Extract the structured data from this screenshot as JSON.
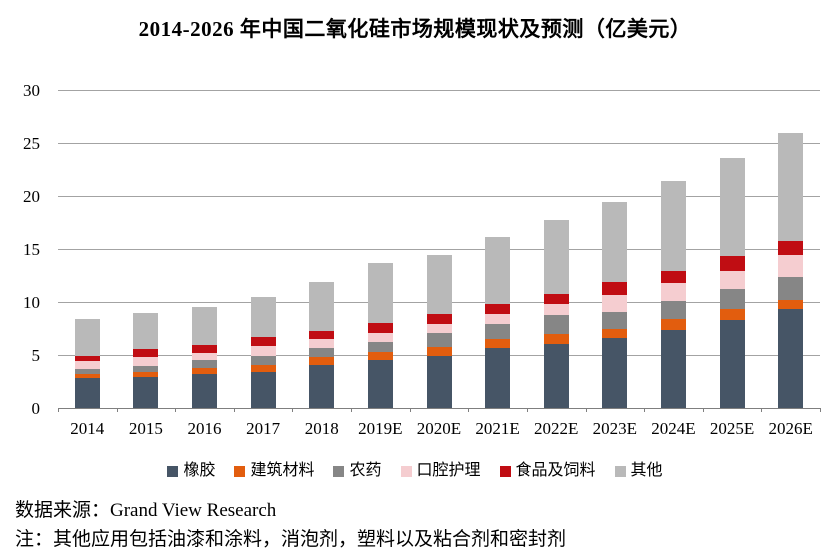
{
  "title": "2014-2026 年中国二氧化硅市场规模现状及预测（亿美元）",
  "source_line": "数据来源：Grand View Research",
  "note_line": "注：其他应用包括油漆和涂料，消泡剂，塑料以及粘合剂和密封剂",
  "chart_data": {
    "type": "bar",
    "stacked": true,
    "title": "2014-2026 年中国二氧化硅市场规模现状及预测（亿美元）",
    "xlabel": "",
    "ylabel": "",
    "ylim": [
      0,
      30
    ],
    "yticks": [
      0,
      5,
      10,
      15,
      20,
      25,
      30
    ],
    "grid": "horizontal",
    "legend_position": "bottom",
    "gridline_color": "#a3a3a3",
    "axis_color": "#7f7f7f",
    "categories": [
      "2014",
      "2015",
      "2016",
      "2017",
      "2018",
      "2019E",
      "2020E",
      "2021E",
      "2022E",
      "2023E",
      "2024E",
      "2025E",
      "2026E"
    ],
    "series": [
      {
        "name": "橡胶",
        "key": "rubber",
        "color": "#465566",
        "values": [
          2.8,
          2.9,
          3.25,
          3.35,
          4.1,
          4.55,
          4.95,
          5.65,
          6.0,
          6.6,
          7.4,
          8.3,
          9.3
        ]
      },
      {
        "name": "建筑材料",
        "key": "building-materials",
        "color": "#e25d0e",
        "values": [
          0.4,
          0.5,
          0.55,
          0.7,
          0.75,
          0.7,
          0.8,
          0.9,
          0.95,
          0.85,
          0.95,
          1.0,
          0.9
        ]
      },
      {
        "name": "农药",
        "key": "agrochemicals",
        "color": "#868686",
        "values": [
          0.5,
          0.55,
          0.7,
          0.9,
          0.85,
          0.95,
          1.3,
          1.35,
          1.8,
          1.6,
          1.75,
          1.9,
          2.2
        ]
      },
      {
        "name": "口腔护理",
        "key": "oral-care",
        "color": "#f5cdd0",
        "values": [
          0.7,
          0.85,
          0.7,
          0.9,
          0.8,
          0.9,
          0.9,
          0.95,
          1.05,
          1.6,
          1.7,
          1.75,
          2.05
        ]
      },
      {
        "name": "食品及饲料",
        "key": "food-and-feed",
        "color": "#c00d13",
        "values": [
          0.55,
          0.75,
          0.7,
          0.85,
          0.8,
          0.9,
          0.9,
          0.95,
          1.0,
          1.25,
          1.15,
          1.35,
          1.35
        ]
      },
      {
        "name": "其他",
        "key": "others",
        "color": "#b9b9b9",
        "values": [
          3.4,
          3.45,
          3.6,
          3.8,
          4.6,
          5.7,
          5.6,
          6.35,
          6.9,
          7.55,
          8.45,
          9.3,
          10.1
        ]
      }
    ],
    "totals": [
      8.35,
      9.0,
      9.5,
      10.5,
      11.9,
      13.7,
      14.45,
      16.15,
      17.7,
      19.45,
      21.4,
      23.6,
      25.9
    ]
  }
}
